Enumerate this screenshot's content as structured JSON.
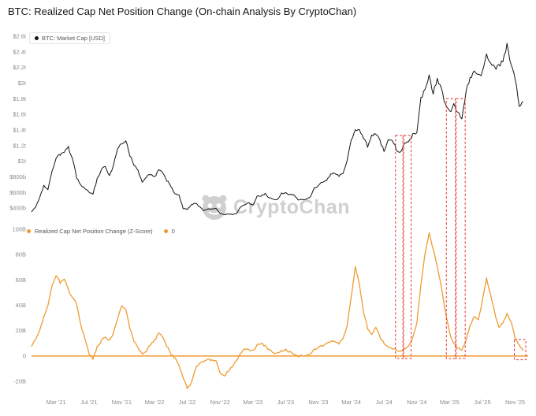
{
  "title": "BTC: Realized Cap Net Position Change (On-chain Analysis By CryptoChan)",
  "watermark": {
    "text": "CryptoChan"
  },
  "legend_top": {
    "label": "BTC: Market Cap [USD]"
  },
  "legend_bottom": {
    "series_label": "Realized Cap Net Position Change (Z-Score)",
    "zero_label": "0"
  },
  "colors": {
    "market_cap_line": "#141414",
    "net_position_line": "#ef9b31",
    "zero_line": "#f0a13c",
    "highlight": "#e03430",
    "axis_text": "#8a8a8a",
    "watermark_gray": "#cbcbcb"
  },
  "chart_data": {
    "type": "line",
    "title": "BTC: Realized Cap Net Position Change (On-chain Analysis By CryptoChan)",
    "x_start_month": "Dec 2020",
    "x_step_months": 0.5,
    "grid": false,
    "legend_position": "top-left-per-panel",
    "xticks": [
      {
        "label": "Mar '21",
        "m": 3
      },
      {
        "label": "Jul '21",
        "m": 7
      },
      {
        "label": "Nov '21",
        "m": 11
      },
      {
        "label": "Mar '22",
        "m": 15
      },
      {
        "label": "Jul '22",
        "m": 19
      },
      {
        "label": "Nov '22",
        "m": 23
      },
      {
        "label": "Mar '23",
        "m": 27
      },
      {
        "label": "Jul '23",
        "m": 31
      },
      {
        "label": "Nov '23",
        "m": 35
      },
      {
        "label": "Mar '24",
        "m": 39
      },
      {
        "label": "Jul '24",
        "m": 43
      },
      {
        "label": "Nov '24",
        "m": 47
      },
      {
        "label": "Mar '25",
        "m": 51
      },
      {
        "label": "Jul '25",
        "m": 55
      },
      {
        "label": "Nov '25",
        "m": 59
      }
    ],
    "panels": [
      {
        "name": "btc-market-cap-usd",
        "series_name": "BTC: Market Cap [USD]",
        "unit": "billion USD",
        "ylim": [
          300,
          2680
        ],
        "yticks": [
          {
            "label": "$2.6t",
            "value": 2600
          },
          {
            "label": "$2.4t",
            "value": 2400
          },
          {
            "label": "$2.2t",
            "value": 2200
          },
          {
            "label": "$2t",
            "value": 2000
          },
          {
            "label": "$1.8t",
            "value": 1800
          },
          {
            "label": "$1.6t",
            "value": 1600
          },
          {
            "label": "$1.4t",
            "value": 1400
          },
          {
            "label": "$1.2t",
            "value": 1200
          },
          {
            "label": "$1t",
            "value": 1000
          },
          {
            "label": "$800b",
            "value": 800
          },
          {
            "label": "$600b",
            "value": 600
          },
          {
            "label": "$400b",
            "value": 400
          }
        ],
        "values": [
          355,
          410,
          545,
          690,
          625,
          880,
          1030,
          1090,
          1120,
          1175,
          1030,
          790,
          700,
          650,
          605,
          585,
          770,
          890,
          935,
          805,
          945,
          1150,
          1230,
          1265,
          1080,
          955,
          875,
          735,
          805,
          835,
          795,
          885,
          855,
          755,
          685,
          575,
          560,
          395,
          380,
          445,
          465,
          415,
          370,
          385,
          390,
          395,
          335,
          315,
          325,
          320,
          325,
          415,
          445,
          470,
          435,
          545,
          555,
          585,
          530,
          520,
          505,
          590,
          595,
          570,
          565,
          510,
          505,
          520,
          545,
          655,
          690,
          735,
          755,
          825,
          855,
          815,
          845,
          1015,
          1255,
          1415,
          1385,
          1290,
          1195,
          1335,
          1355,
          1270,
          1125,
          1295,
          1275,
          1155,
          1115,
          1245,
          1255,
          1335,
          1365,
          1805,
          1925,
          2095,
          1855,
          2065,
          1925,
          1705,
          1625,
          1735,
          1620,
          1555,
          1885,
          2060,
          2145,
          2085,
          2145,
          2345,
          2290,
          2185,
          2205,
          2275,
          2480,
          2230,
          2060,
          1685,
          1760
        ]
      },
      {
        "name": "realized-cap-net-position-change",
        "series_name": "Realized Cap Net Position Change (Z-Score)",
        "unit": "billion USD",
        "ylim": [
          -30,
          105
        ],
        "zero_line": 0,
        "yticks": [
          {
            "label": "100B",
            "value": 100
          },
          {
            "label": "80B",
            "value": 80
          },
          {
            "label": "60B",
            "value": 60
          },
          {
            "label": "40B",
            "value": 40
          },
          {
            "label": "20B",
            "value": 20
          },
          {
            "label": "0",
            "value": 0
          },
          {
            "label": "-20B",
            "value": -20
          }
        ],
        "values": [
          8,
          13,
          21,
          31,
          39,
          56,
          63,
          58,
          61,
          52,
          46,
          41,
          25,
          14,
          2,
          -2,
          7,
          12,
          15,
          12,
          18,
          29,
          40,
          37,
          22,
          12,
          6,
          2,
          4,
          9,
          12,
          18,
          15,
          8,
          2,
          -2,
          -8,
          -17,
          -26,
          -21,
          -10,
          -6,
          -4,
          -3,
          -3,
          -4,
          -13,
          -16,
          -12,
          -8,
          -4,
          2,
          6,
          5,
          4,
          8,
          10,
          8,
          5,
          3,
          2,
          4,
          5,
          3,
          1,
          0,
          0,
          1,
          2,
          5,
          7,
          8,
          10,
          11,
          12,
          10,
          14,
          24,
          46,
          71,
          56,
          34,
          22,
          17,
          23,
          15,
          10,
          8,
          6,
          5,
          4,
          6,
          8,
          14,
          26,
          56,
          81,
          97,
          84,
          71,
          54,
          34,
          18,
          10,
          6,
          5,
          12,
          24,
          31,
          28,
          44,
          61,
          49,
          34,
          22,
          26,
          33,
          27,
          14,
          8,
          4
        ]
      }
    ],
    "highlights": [
      {
        "m0": 44.4,
        "m1": 45.3,
        "top_panel": "top",
        "top_value": 1330,
        "bot_panel": "bot",
        "bot_value": -2
      },
      {
        "m0": 45.4,
        "m1": 46.3,
        "top_panel": "top",
        "top_value": 1330,
        "bot_panel": "bot",
        "bot_value": -2
      },
      {
        "m0": 50.6,
        "m1": 51.7,
        "top_panel": "top",
        "top_value": 1800,
        "bot_panel": "bot",
        "bot_value": -2
      },
      {
        "m0": 51.8,
        "m1": 52.9,
        "top_panel": "top",
        "top_value": 1800,
        "bot_panel": "bot",
        "bot_value": -2
      },
      {
        "m0": 58.9,
        "m1": 60.3,
        "top_panel": "bot",
        "top_value": 13,
        "bot_panel": "bot",
        "bot_value": -3
      }
    ]
  }
}
